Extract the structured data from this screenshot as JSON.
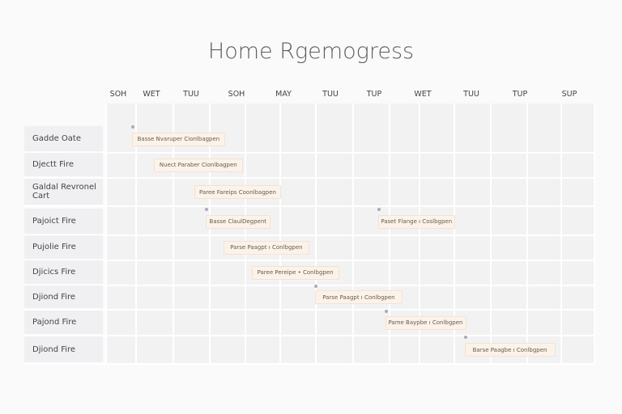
{
  "chart_data": {
    "type": "gantt",
    "title": "Home Rgemogress",
    "columns": [
      "SOH",
      "WET",
      "TUU",
      "SOH",
      "MAY",
      "TUU",
      "TUP",
      "WET",
      "TUU",
      "TUP",
      "SUP"
    ],
    "rows": [
      {
        "label": "Gadde Oate",
        "tasks": [
          {
            "label": "Basse Nvaruper Cionlbagpen",
            "start": 0.9,
            "end": 3.4,
            "milestone": true
          }
        ]
      },
      {
        "label": "Djectt Fire",
        "tasks": [
          {
            "label": "Nuect Paraber Cionlbagpen",
            "start": 1.5,
            "end": 3.9,
            "milestone": false
          }
        ]
      },
      {
        "label": "Galdal Revronel Cart",
        "tasks": [
          {
            "label": "Paree Fareips Coonlbagpen",
            "start": 2.6,
            "end": 5.0,
            "milestone": false
          }
        ]
      },
      {
        "label": "Pajoict Fire",
        "tasks": [
          {
            "label": "Basse ClaulDegpent",
            "start": 2.9,
            "end": 4.7,
            "milestone": true
          },
          {
            "label": "Paset Flange ı Coslbgpen",
            "start": 7.7,
            "end": 10.0,
            "milestone": true
          }
        ]
      },
      {
        "label": "Pujolie Fire",
        "tasks": [
          {
            "label": "Parse Paagpt ı Conlbgpen",
            "start": 3.4,
            "end": 5.8,
            "milestone": false
          }
        ]
      },
      {
        "label": "Djicics Fire",
        "tasks": [
          {
            "label": "Paree Pereipe • Conlbgpen",
            "start": 4.2,
            "end": 6.6,
            "milestone": false
          }
        ]
      },
      {
        "label": "Djiond Fire",
        "tasks": [
          {
            "label": "Parse Paagpt ı Conlbgpen",
            "start": 6.0,
            "end": 8.4,
            "milestone": true
          }
        ]
      },
      {
        "label": "Pajond Fire",
        "tasks": [
          {
            "label": "Pame Baypbe ı Conlbgpen",
            "start": 7.9,
            "end": 10.3,
            "milestone": true
          }
        ]
      },
      {
        "label": "Djiond Fire",
        "tasks": [
          {
            "label": "Barse Paagbe ı Conlbgpen",
            "start": 10.3,
            "end": 12.8,
            "milestone": true
          }
        ]
      }
    ],
    "colors": {
      "bar": "#fbf3ea",
      "grid": "#f2f2f3"
    }
  }
}
